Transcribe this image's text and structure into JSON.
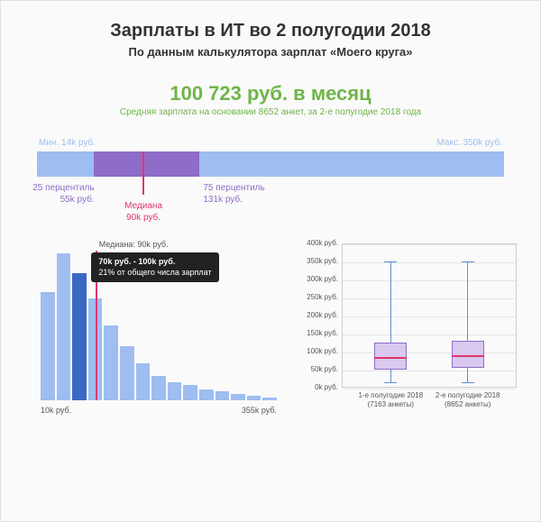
{
  "colors": {
    "green": "#6fb548",
    "range_bar": "#9ebdf0",
    "iqr": "#8e6cc8",
    "median": "#e0356c",
    "hist_bar": "#9ebdf0",
    "highlight_bar": "#3b68c4",
    "box_fill": "#d9c8ef",
    "box_border": "#8e6cc8",
    "whisker": "#5a8fd6"
  },
  "header": {
    "title": "Зарплаты в ИТ во 2 полугодии 2018",
    "subtitle": "По данным калькулятора зарплат «Моего круга»"
  },
  "average": {
    "value": "100 723 руб. в месяц",
    "fontsize": 22,
    "caption": "Средняя зарплата на основании 8652 анкет, за 2-е полугодие 2018 года"
  },
  "range": {
    "min_k": 14,
    "max_k": 350,
    "p25_k": 55,
    "p75_k": 131,
    "median_k": 90,
    "labels": {
      "min": "Мин. 14k руб.",
      "max": "Макс. 350k руб.",
      "p25_a": "25 перцентиль",
      "p25_b": "55k руб.",
      "p75_a": "75 перцентиль",
      "p75_b": "131k руб.",
      "med_a": "Медиана",
      "med_b": "90k руб."
    }
  },
  "histogram": {
    "type": "histogram",
    "x_min_label": "10k руб.",
    "x_max_label": "355k руб.",
    "median_label": "Медиана: 90k руб.",
    "median_k": 90,
    "range_k": [
      10,
      355
    ],
    "bars": [
      72,
      98,
      85,
      68,
      50,
      36,
      25,
      16,
      12,
      10,
      7,
      6,
      4,
      3,
      2
    ],
    "max_bar": 100,
    "highlight_idx": 2,
    "tooltip_l1": "70k руб. - 100k руб.",
    "tooltip_l2": "21% от общего числа зарплат"
  },
  "boxplot": {
    "type": "boxplot",
    "ymax_k": 400,
    "ytick_step_k": 50,
    "yticks": [
      "0k руб.",
      "50k руб.",
      "100k руб.",
      "150k руб.",
      "200k руб.",
      "250k руб.",
      "300k руб.",
      "350k руб.",
      "400k руб."
    ],
    "series": [
      {
        "label_l1": "1-е полугодие 2018",
        "label_l2": "(7163 анкеты)",
        "whisk_low_k": 14,
        "whisk_high_k": 350,
        "q1_k": 50,
        "q3_k": 125,
        "med_k": 85
      },
      {
        "label_l1": "2-е полугодие 2018",
        "label_l2": "(8652 анкеты)",
        "whisk_low_k": 14,
        "whisk_high_k": 350,
        "q1_k": 55,
        "q3_k": 131,
        "med_k": 90
      }
    ]
  }
}
